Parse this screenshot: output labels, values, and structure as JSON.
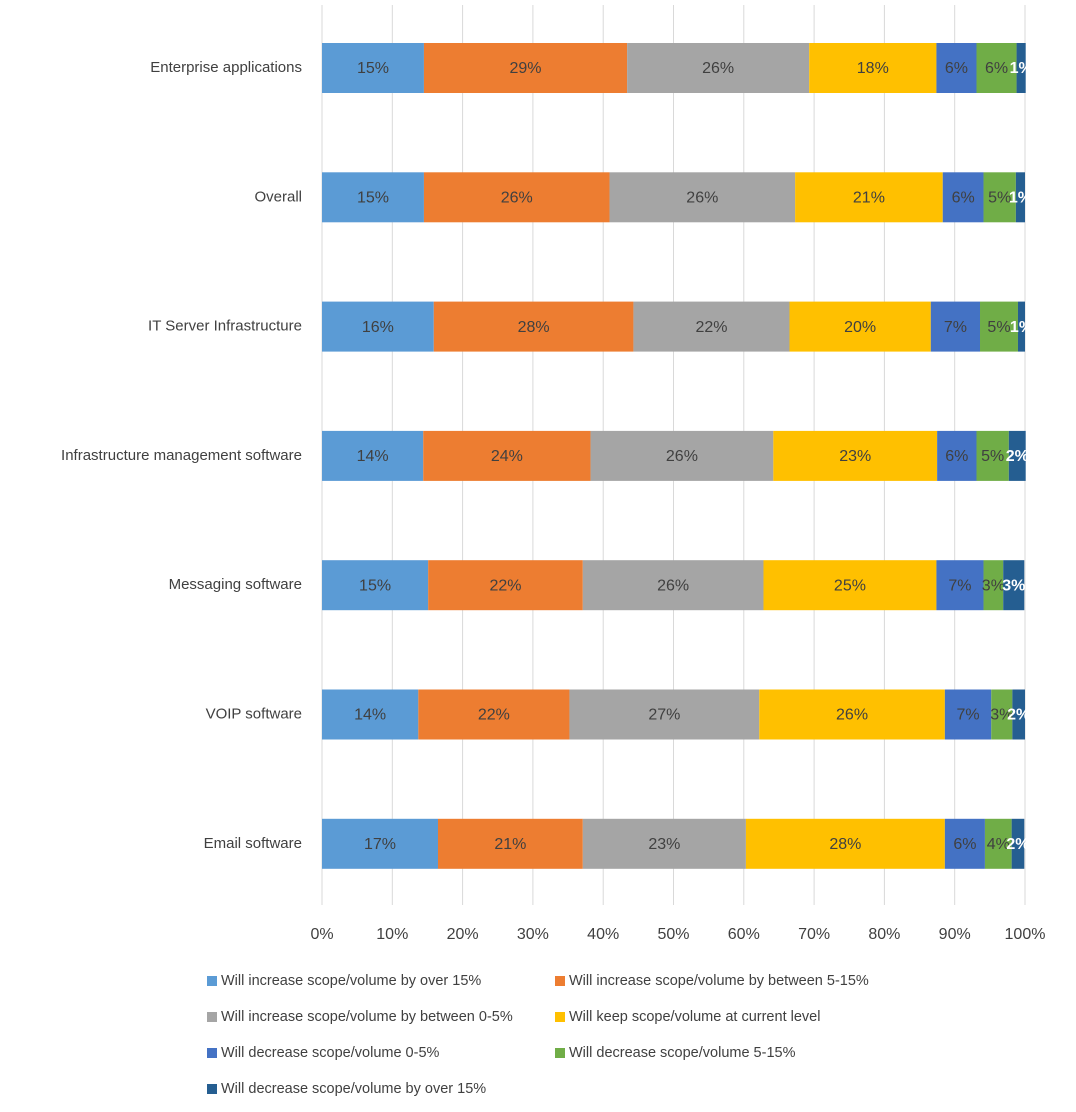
{
  "chart_data": {
    "type": "stacked_bar_horizontal",
    "categories": [
      "Enterprise applications",
      "Overall",
      "IT Server Infrastructure",
      "Infrastructure management  software",
      "Messaging  software",
      "VOIP software",
      "Email software"
    ],
    "series": [
      {
        "name": "Will increase scope/volume by over 15%",
        "color": "#5b9bd5",
        "values": [
          14.5,
          14.5,
          15.9,
          14.4,
          15.1,
          13.7,
          16.5
        ],
        "value_labels": [
          "15%",
          "15%",
          "16%",
          "14%",
          "15%",
          "14%",
          "17%"
        ]
      },
      {
        "name": "Will increase scope/volume by between 5-15%",
        "color": "#ed7d31",
        "values": [
          28.9,
          26.4,
          28.4,
          23.8,
          22.0,
          21.5,
          20.6
        ],
        "value_labels": [
          "29%",
          "26%",
          "28%",
          "24%",
          "22%",
          "22%",
          "21%"
        ]
      },
      {
        "name": "Will increase scope/volume by between 0-5%",
        "color": "#a5a5a5",
        "values": [
          25.9,
          26.4,
          22.2,
          26.0,
          25.7,
          27.0,
          23.2
        ],
        "value_labels": [
          "26%",
          "26%",
          "22%",
          "26%",
          "26%",
          "27%",
          "23%"
        ]
      },
      {
        "name": "Will keep scope/volume at current level",
        "color": "#ffc000",
        "values": [
          18.1,
          21.0,
          20.1,
          23.3,
          24.6,
          26.4,
          28.3
        ],
        "value_labels": [
          "18%",
          "21%",
          "20%",
          "23%",
          "25%",
          "26%",
          "28%"
        ]
      },
      {
        "name": "Will decrease scope/volume 0-5%",
        "color": "#4472c4",
        "values": [
          5.7,
          5.8,
          7.0,
          5.6,
          6.7,
          6.6,
          5.7
        ],
        "value_labels": [
          "6%",
          "6%",
          "7%",
          "6%",
          "7%",
          "7%",
          "6%"
        ]
      },
      {
        "name": "Will decrease scope/volume 5-15%",
        "color": "#70ad47",
        "values": [
          5.7,
          4.6,
          5.4,
          4.6,
          2.8,
          3.0,
          3.8
        ],
        "value_labels": [
          "6%",
          "5%",
          "5%",
          "5%",
          "3%",
          "3%",
          "4%"
        ]
      },
      {
        "name": "Will decrease scope/volume by over 15%",
        "color": "#255e91",
        "values": [
          1.3,
          1.3,
          1.0,
          2.4,
          3.0,
          1.8,
          1.8
        ],
        "value_labels": [
          "1%",
          "1%",
          "1%",
          "2%",
          "3%",
          "2%",
          "2%"
        ]
      }
    ],
    "xlim": [
      0,
      100
    ],
    "xticks": [
      {
        "value": 0,
        "label": "0%"
      },
      {
        "value": 10,
        "label": "10%"
      },
      {
        "value": 20,
        "label": "20%"
      },
      {
        "value": 30,
        "label": "30%"
      },
      {
        "value": 40,
        "label": "40%"
      },
      {
        "value": 50,
        "label": "50%"
      },
      {
        "value": 60,
        "label": "60%"
      },
      {
        "value": 70,
        "label": "70%"
      },
      {
        "value": 80,
        "label": "80%"
      },
      {
        "value": 90,
        "label": "90%"
      },
      {
        "value": 100,
        "label": "100%"
      }
    ],
    "grid": true,
    "legend": "bottom"
  }
}
